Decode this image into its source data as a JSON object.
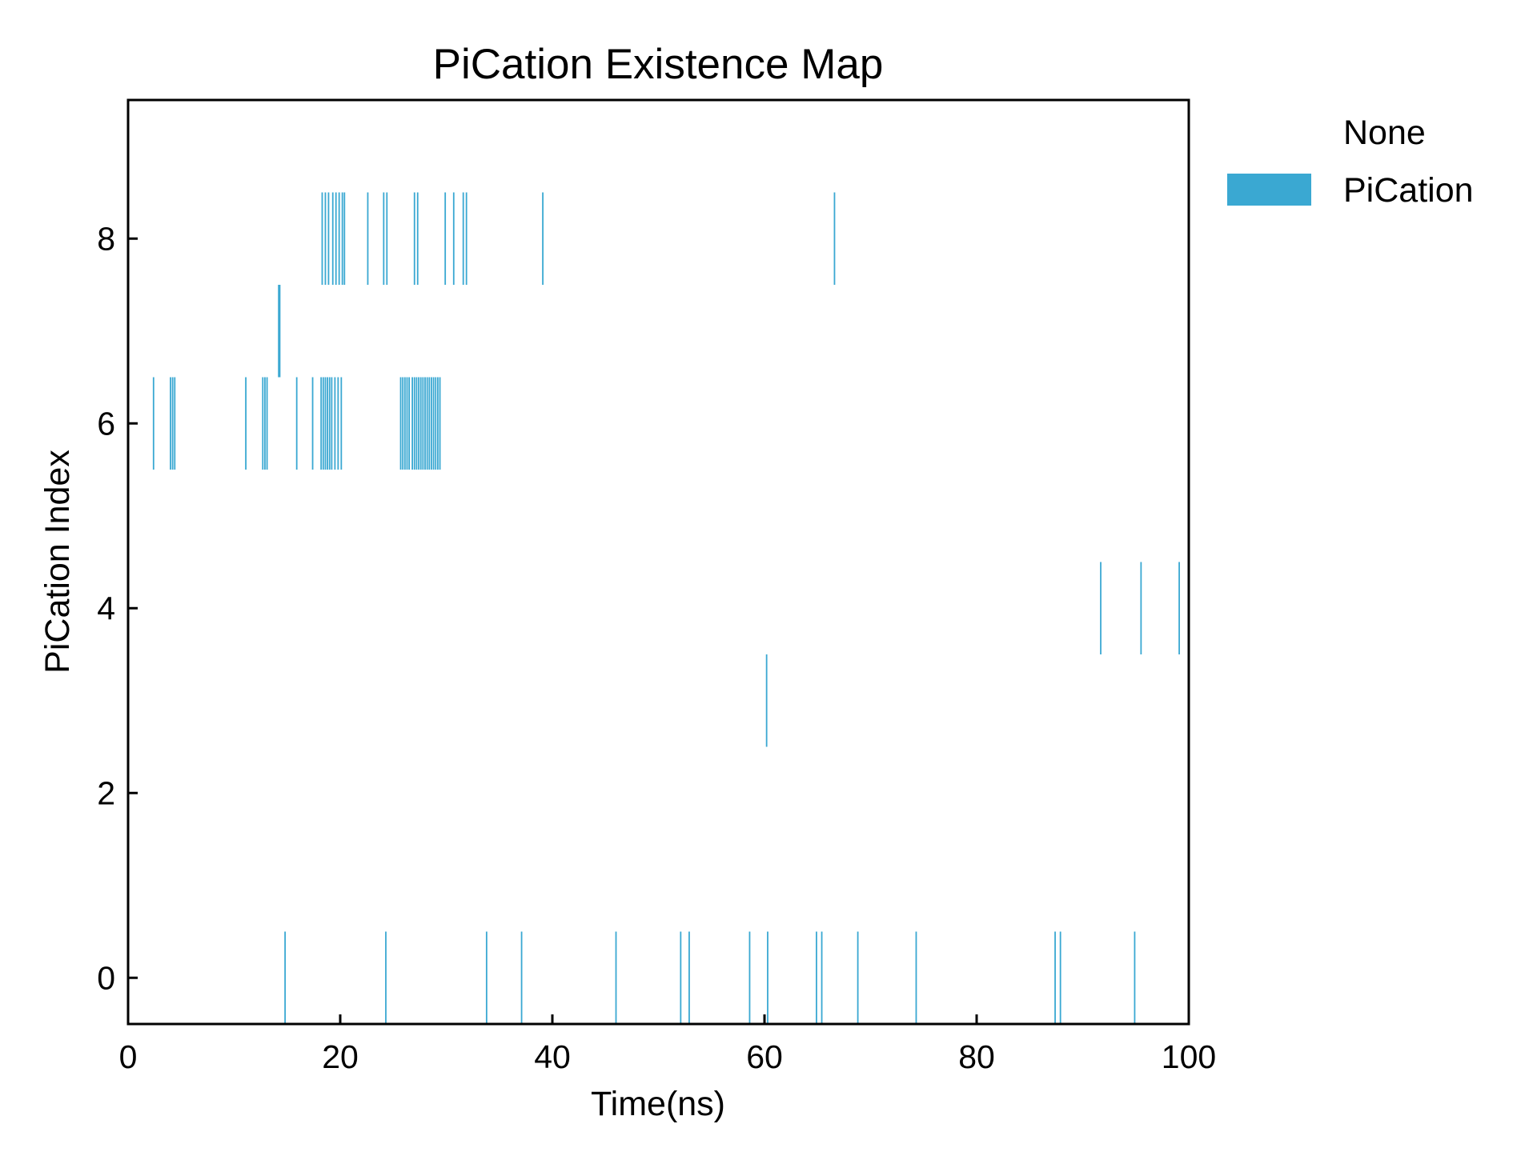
{
  "chart_data": {
    "type": "heatmap",
    "title": "PiCation Existence Map",
    "xlabel": "Time(ns)",
    "ylabel": "PiCation Index",
    "xlim": [
      0,
      100
    ],
    "ylim": [
      -0.5,
      9.5
    ],
    "x_ticks": [
      0,
      20,
      40,
      60,
      80,
      100
    ],
    "x_tick_labels": [
      "0",
      "20",
      "40",
      "60",
      "80",
      "100"
    ],
    "y_ticks": [
      0,
      2,
      4,
      6,
      8
    ],
    "y_tick_labels": [
      "0",
      "2",
      "4",
      "6",
      "8"
    ],
    "grid": false,
    "legend": {
      "placement": "outside-top-right",
      "entries": [
        {
          "label": "None",
          "color": "#ffffff"
        },
        {
          "label": "PiCation",
          "color": "#3aa8d2"
        }
      ]
    },
    "bar_color": "#3aa8d2",
    "events": [
      {
        "index": 0,
        "times": [
          14.8,
          24.3,
          33.8,
          37.1,
          46.0,
          52.1,
          52.9,
          58.6,
          60.3,
          64.9,
          65.4,
          68.8,
          74.3,
          87.4,
          87.9,
          94.9
        ]
      },
      {
        "index": 3,
        "times": [
          60.2
        ]
      },
      {
        "index": 4,
        "times": [
          91.7,
          95.5,
          99.1
        ]
      },
      {
        "index": 6,
        "times": [
          2.4,
          4.0,
          4.2,
          4.4,
          11.1,
          12.7,
          12.9,
          13.1,
          15.9,
          17.4,
          18.2,
          18.4,
          18.6,
          18.8,
          19.0,
          19.2,
          19.5,
          19.8,
          20.1,
          25.7,
          25.9,
          26.1,
          26.3,
          26.5,
          26.8,
          27.0,
          27.2,
          27.4,
          27.6,
          27.8,
          28.0,
          28.2,
          28.4,
          28.6,
          28.8,
          29.0,
          29.2,
          29.4
        ]
      },
      {
        "index": 7,
        "times": [
          14.2,
          14.3
        ]
      },
      {
        "index": 8,
        "times": [
          18.3,
          18.6,
          18.9,
          19.3,
          19.6,
          19.9,
          20.2,
          20.4,
          22.6,
          24.1,
          24.4,
          27.0,
          27.3,
          29.9,
          30.7,
          31.6,
          31.9,
          39.1,
          66.6
        ]
      }
    ]
  }
}
